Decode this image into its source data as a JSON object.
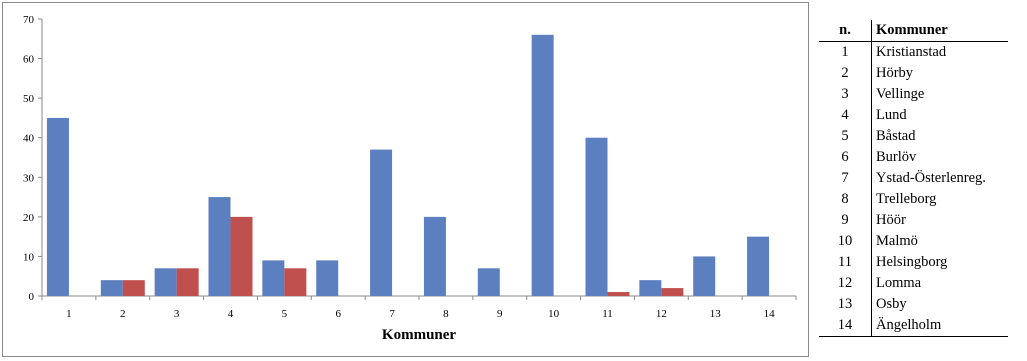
{
  "chart_data": {
    "type": "bar",
    "xlabel": "Kommuner",
    "ylabel": "",
    "ylim": [
      0,
      70
    ],
    "yticks": [
      0,
      10,
      20,
      30,
      40,
      50,
      60,
      70
    ],
    "categories": [
      "1",
      "2",
      "3",
      "4",
      "5",
      "6",
      "7",
      "8",
      "9",
      "10",
      "11",
      "12",
      "13",
      "14"
    ],
    "series": [
      {
        "color": "#5b7fbf",
        "values": [
          45,
          4,
          7,
          25,
          9,
          9,
          37,
          20,
          7,
          66,
          40,
          4,
          10,
          15
        ]
      },
      {
        "color": "#c0504d",
        "values": [
          0,
          4,
          7,
          20,
          7,
          0,
          0,
          0,
          0,
          0,
          1,
          2,
          0,
          0
        ]
      }
    ],
    "grid": false,
    "legend": "none"
  },
  "table": {
    "headers": [
      "n.",
      "Kommuner"
    ],
    "rows": [
      [
        "1",
        "Kristianstad"
      ],
      [
        "2",
        "Hörby"
      ],
      [
        "3",
        "Vellinge"
      ],
      [
        "4",
        "Lund"
      ],
      [
        "5",
        "Båstad"
      ],
      [
        "6",
        "Burlöv"
      ],
      [
        "7",
        "Ystad-Österlenreg."
      ],
      [
        "8",
        "Trelleborg"
      ],
      [
        "9",
        "Höör"
      ],
      [
        "10",
        "Malmö"
      ],
      [
        "11",
        "Helsingborg"
      ],
      [
        "12",
        "Lomma"
      ],
      [
        "13",
        "Osby"
      ],
      [
        "14",
        "Ängelholm"
      ]
    ]
  }
}
